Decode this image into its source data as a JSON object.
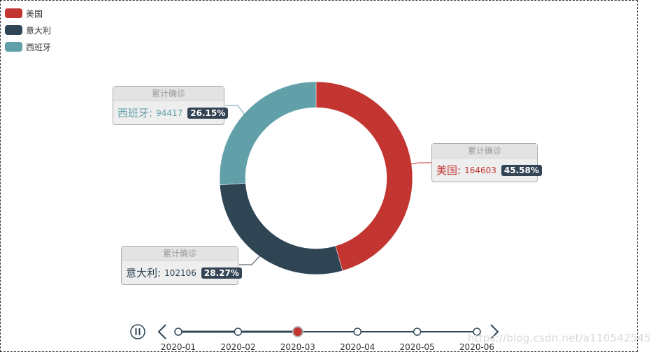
{
  "chart_data": {
    "type": "pie",
    "variant": "donut",
    "series_name": "累计确诊",
    "slices": [
      {
        "name": "美国",
        "value": 164603,
        "percent": "45.58%",
        "color": "#c23531"
      },
      {
        "name": "意大利",
        "value": 102106,
        "percent": "28.27%",
        "color": "#2f4554"
      },
      {
        "name": "西班牙",
        "value": 94417,
        "percent": "26.15%",
        "color": "#61a0a8"
      }
    ],
    "legend_position": "top-left"
  },
  "timeline": {
    "play_state": "paused",
    "current": "2020-03",
    "current_index": 2,
    "labels": [
      "2020-01",
      "2020-02",
      "2020-03",
      "2020-04",
      "2020-05",
      "2020-06"
    ],
    "line_color": "#304654",
    "active_color": "#c23531"
  },
  "watermark": "https://blog.csdn.net/a110542545"
}
